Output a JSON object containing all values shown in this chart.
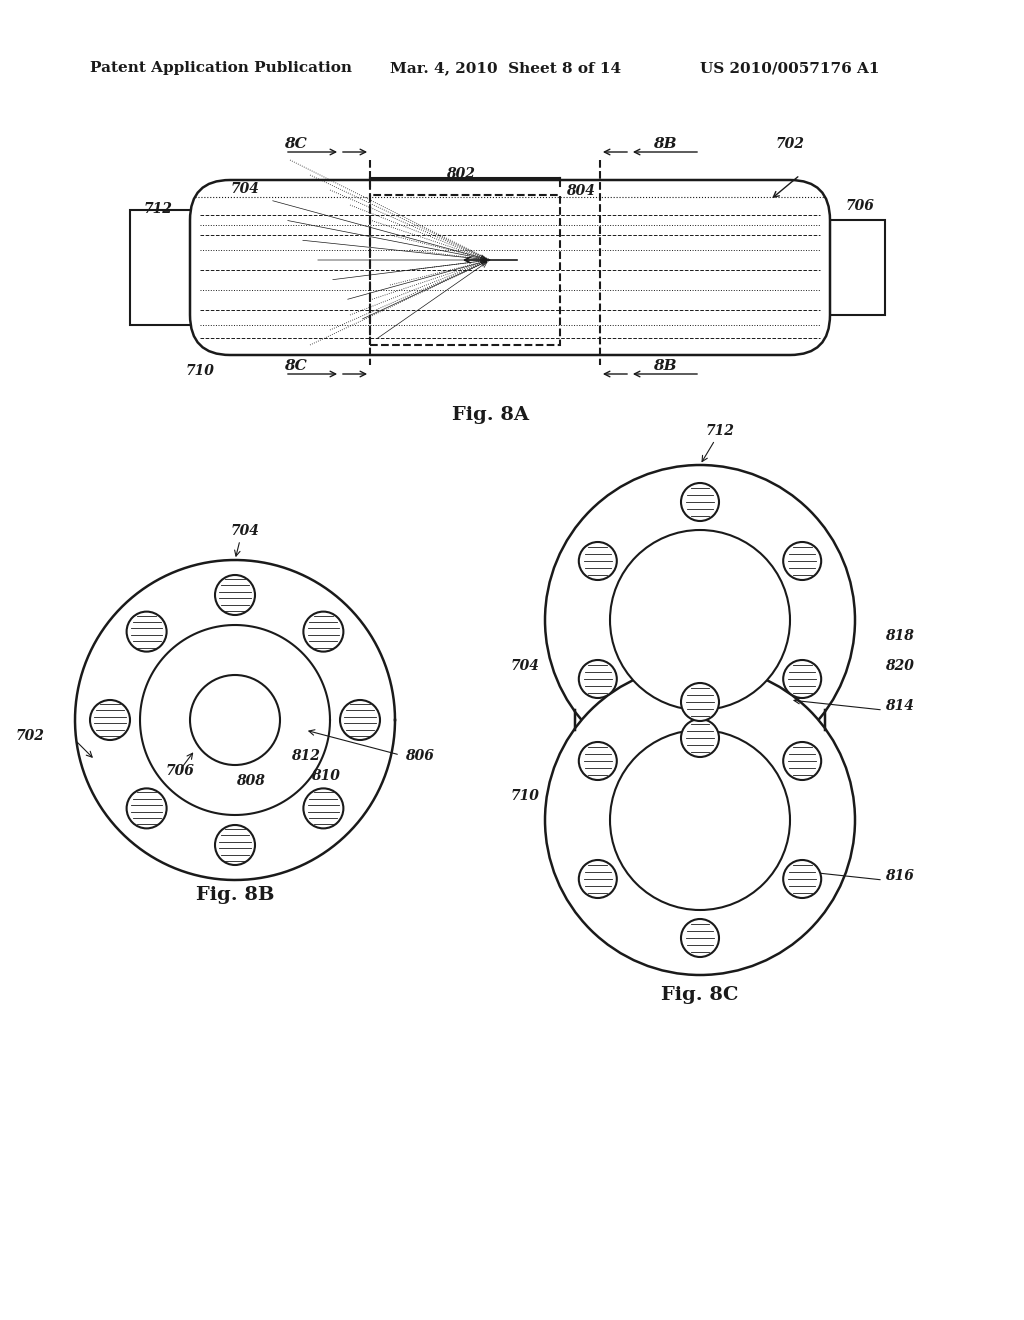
{
  "bg_color": "#ffffff",
  "header_left": "Patent Application Publication",
  "header_mid": "Mar. 4, 2010  Sheet 8 of 14",
  "header_right": "US 2010/0057176 A1",
  "fig8a_label": "Fig. 8A",
  "fig8b_label": "Fig. 8B",
  "fig8c_label": "Fig. 8C",
  "label_color": "#1a1a1a",
  "line_color": "#1a1a1a",
  "lw": 1.5
}
